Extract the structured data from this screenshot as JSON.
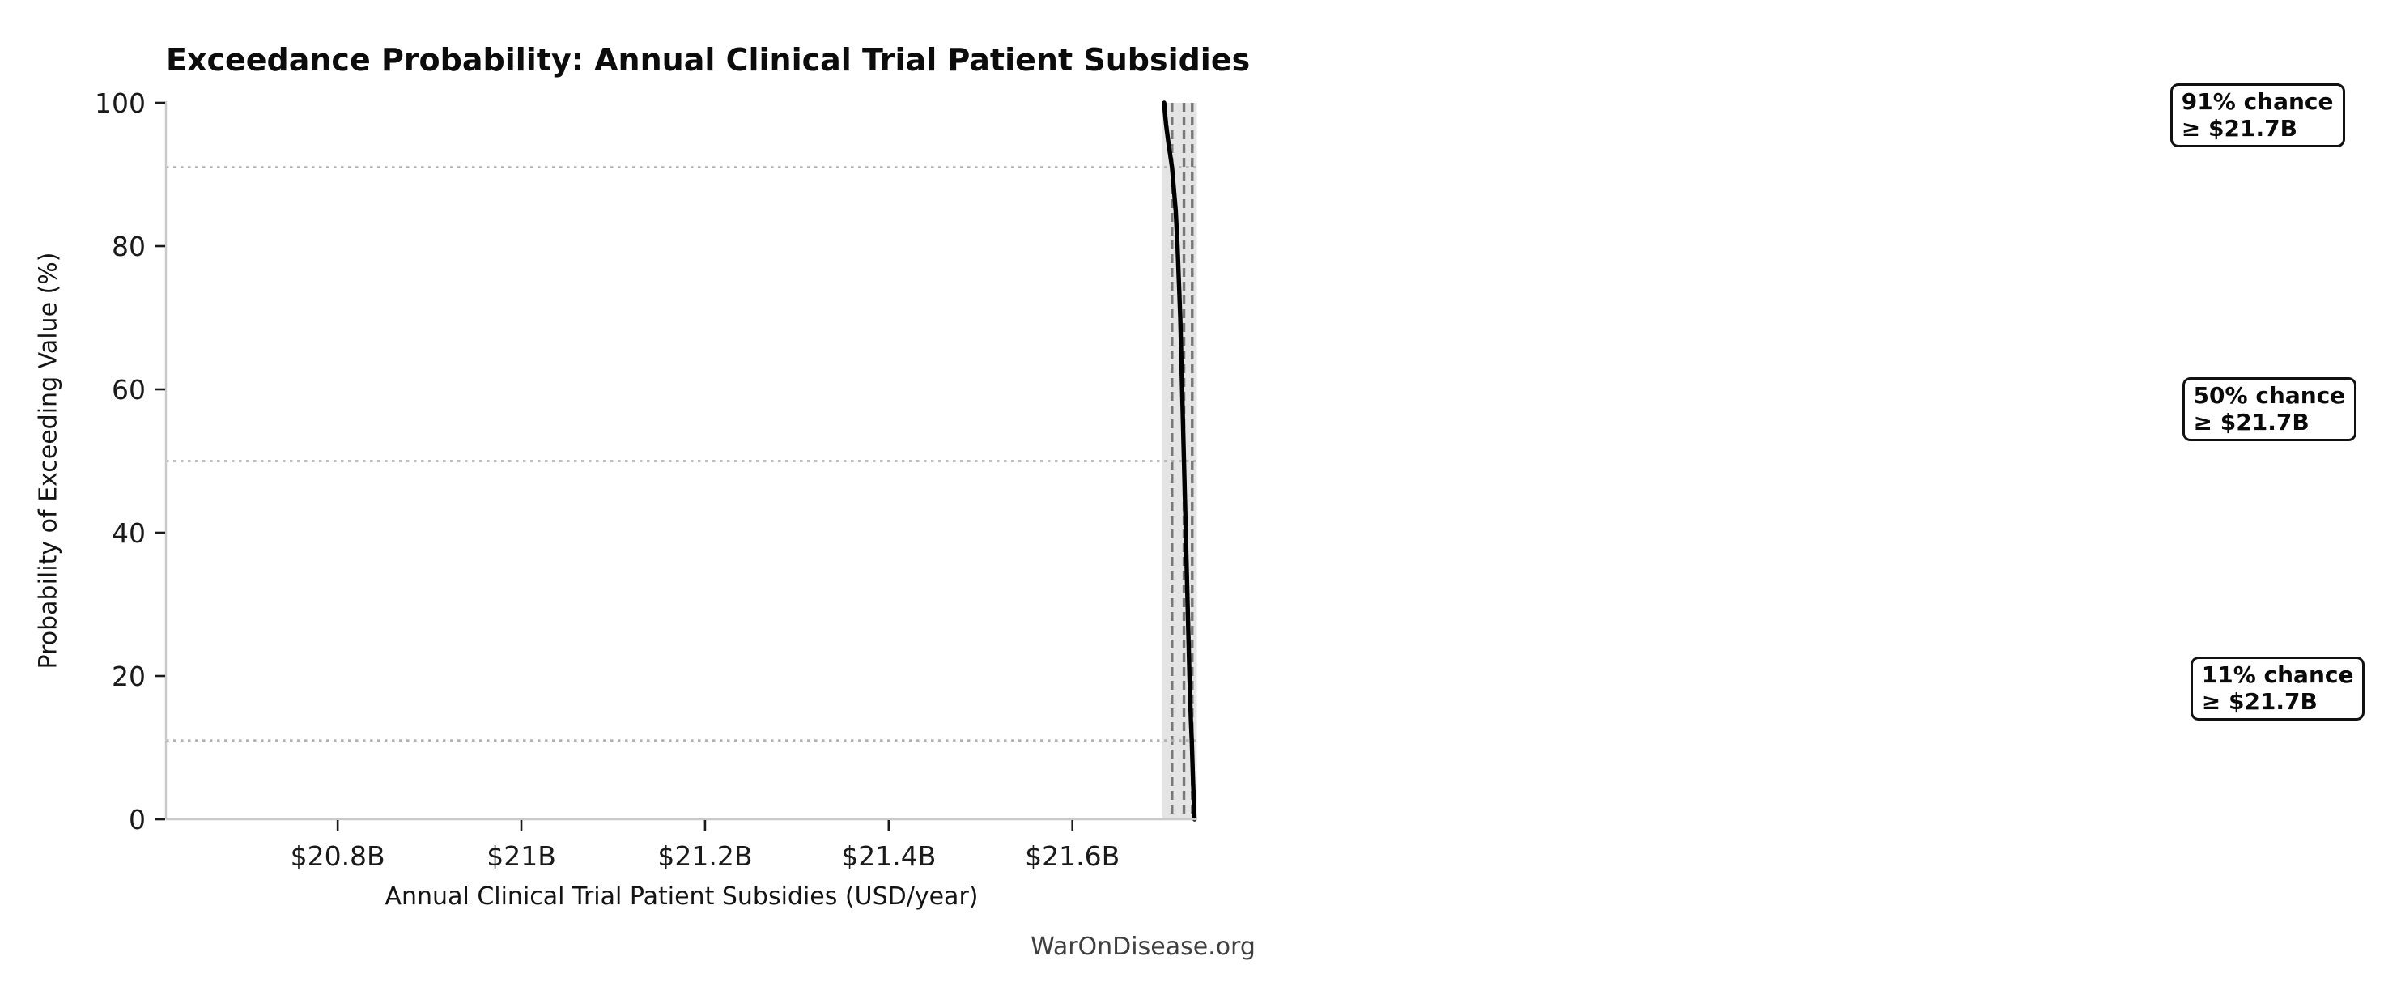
{
  "figure": {
    "watermark": "WarOnDisease.org"
  },
  "chart_data": {
    "type": "line",
    "title": "Exceedance Probability: Annual Clinical Trial Patient Subsidies",
    "xlabel": "Annual Clinical Trial Patient Subsidies (USD/year)",
    "ylabel": "Probability of Exceeding Value (%)",
    "xlim": [
      20.613,
      21.736
    ],
    "ylim": [
      0,
      100
    ],
    "x_unit": "USD billions per year",
    "x_ticks": [
      {
        "value": 20.8,
        "label": "$20.8B"
      },
      {
        "value": 21.0,
        "label": "$21B"
      },
      {
        "value": 21.2,
        "label": "$21.2B"
      },
      {
        "value": 21.4,
        "label": "$21.4B"
      },
      {
        "value": 21.6,
        "label": "$21.6B"
      }
    ],
    "y_ticks": [
      {
        "value": 0,
        "label": "0"
      },
      {
        "value": 20,
        "label": "20"
      },
      {
        "value": 40,
        "label": "40"
      },
      {
        "value": 60,
        "label": "60"
      },
      {
        "value": 80,
        "label": "80"
      },
      {
        "value": 100,
        "label": "100"
      }
    ],
    "grid": "horizontal dotted guide lines only at annotated probabilities",
    "legend": null,
    "series": [
      {
        "name": "exceedance-curve",
        "x": [
          21.7,
          21.7005,
          21.702,
          21.7045,
          21.7085,
          21.7125,
          21.7145,
          21.7175,
          21.7195,
          21.7215,
          21.7235,
          21.7255,
          21.7275,
          21.729,
          21.73,
          21.7315,
          21.733
        ],
        "y": [
          100,
          99,
          97,
          94.5,
          91,
          85,
          80,
          70,
          60,
          50,
          40,
          30,
          20,
          14,
          11,
          5,
          0
        ]
      }
    ],
    "band": {
      "name": "uncertainty-band",
      "x_min": 21.698,
      "x_max": 21.7355
    },
    "guides": [
      {
        "prob": 91,
        "value": 21.7085,
        "label_line1": "91% chance",
        "label_line2": "≥ $21.7B"
      },
      {
        "prob": 50,
        "value": 21.7215,
        "label_line1": "50% chance",
        "label_line2": "≥ $21.7B"
      },
      {
        "prob": 11,
        "value": 21.7305,
        "label_line1": "11% chance",
        "label_line2": "≥ $21.7B"
      }
    ]
  },
  "colors": {
    "curve": "#000000",
    "band": "#e4e4e4",
    "dashed_guide": "#787878",
    "dotted_guide": "#b2b2b2",
    "spine": "#c9c9c9",
    "tick": "#1a1a1a",
    "tick_label": "#1a1a1a",
    "title": "#0c0c0c",
    "watermark": "#3f3f3f",
    "annotation_border": "#111111",
    "annotation_bg": "#ffffff",
    "background": "#ffffff"
  }
}
